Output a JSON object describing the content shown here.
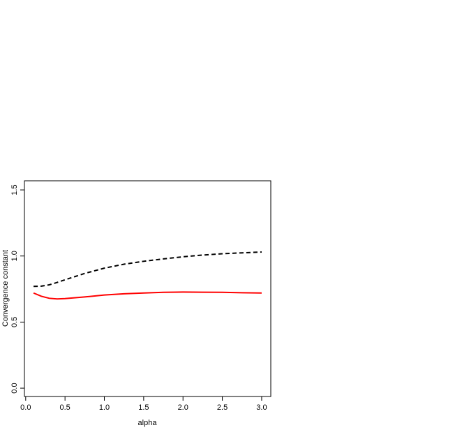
{
  "chart_data": {
    "type": "line",
    "x_label": "alpha",
    "y_label": "Convergence constant",
    "x": [
      0.1,
      0.2,
      0.3,
      0.4,
      0.5,
      0.75,
      1.0,
      1.25,
      1.5,
      1.75,
      2.0,
      2.25,
      2.5,
      2.75,
      3.0
    ],
    "series": [
      {
        "color": "#000000",
        "dashed": true,
        "values": [
          0.77,
          0.772,
          0.782,
          0.8,
          0.82,
          0.868,
          0.908,
          0.938,
          0.96,
          0.978,
          0.994,
          1.007,
          1.017,
          1.024,
          1.03
        ]
      },
      {
        "color": "#ff0000",
        "dashed": false,
        "values": [
          0.72,
          0.695,
          0.68,
          0.675,
          0.678,
          0.69,
          0.705,
          0.714,
          0.72,
          0.725,
          0.727,
          0.726,
          0.725,
          0.722,
          0.72
        ]
      }
    ],
    "xlim": [
      -0.016,
      3.116
    ],
    "ylim": [
      -0.063,
      1.569
    ],
    "xticks": [
      {
        "value": 0,
        "label": "0.0"
      },
      0.5,
      {
        "value": 1,
        "label": "1.0"
      },
      1.5,
      {
        "value": 2,
        "label": "2.0"
      },
      2.5,
      {
        "value": 3,
        "label": "3.0"
      }
    ],
    "yticks": [
      {
        "value": 0,
        "label": "0.0"
      },
      0.5,
      {
        "value": 1,
        "label": "1.0"
      },
      1.5
    ],
    "grid": false
  }
}
